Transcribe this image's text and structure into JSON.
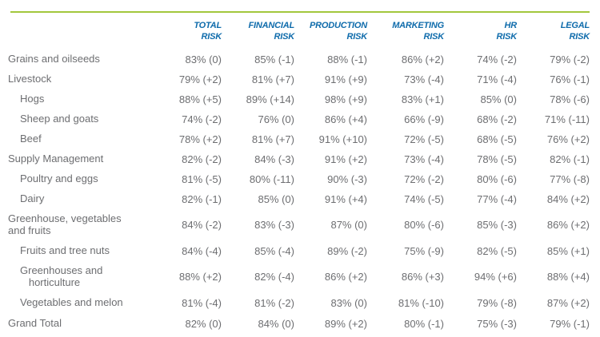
{
  "colors": {
    "accent_green": "#a2c73d",
    "header_blue": "#0e6bab",
    "text_gray": "#6d6e71"
  },
  "chart_data": {
    "type": "table",
    "title": "",
    "columns": [
      {
        "line1": "TOTAL",
        "line2": "RISK"
      },
      {
        "line1": "FINANCIAL",
        "line2": "RISK"
      },
      {
        "line1": "PRODUCTION",
        "line2": "RISK"
      },
      {
        "line1": "MARKETING",
        "line2": "RISK"
      },
      {
        "line1": "HR",
        "line2": "RISK"
      },
      {
        "line1": "LEGAL",
        "line2": "RISK"
      }
    ],
    "rows": [
      {
        "label": "Grains and oilseeds",
        "indent": 0,
        "double": false,
        "total": false,
        "values": [
          "83% (0)",
          "85% (-1)",
          "88% (-1)",
          "86% (+2)",
          "74% (-2)",
          "79% (-2)"
        ]
      },
      {
        "label": "Livestock",
        "indent": 0,
        "double": false,
        "total": false,
        "values": [
          "79% (+2)",
          "81% (+7)",
          "91% (+9)",
          "73% (-4)",
          "71% (-4)",
          "76% (-1)"
        ]
      },
      {
        "label": "Hogs",
        "indent": 1,
        "double": false,
        "total": false,
        "values": [
          "88% (+5)",
          "89% (+14)",
          "98% (+9)",
          "83% (+1)",
          "85% (0)",
          "78% (-6)"
        ]
      },
      {
        "label": "Sheep and goats",
        "indent": 1,
        "double": false,
        "total": false,
        "values": [
          "74% (-2)",
          "76% (0)",
          "86% (+4)",
          "66% (-9)",
          "68% (-2)",
          "71% (-11)"
        ]
      },
      {
        "label": "Beef",
        "indent": 1,
        "double": false,
        "total": false,
        "values": [
          "78% (+2)",
          "81% (+7)",
          "91% (+10)",
          "72% (-5)",
          "68% (-5)",
          "76% (+2)"
        ]
      },
      {
        "label": "Supply Management",
        "indent": 0,
        "double": false,
        "total": false,
        "values": [
          "82% (-2)",
          "84% (-3)",
          "91% (+2)",
          "73% (-4)",
          "78% (-5)",
          "82% (-1)"
        ]
      },
      {
        "label": "Poultry and eggs",
        "indent": 1,
        "double": false,
        "total": false,
        "values": [
          "81% (-5)",
          "80% (-11)",
          "90% (-3)",
          "72% (-2)",
          "80% (-6)",
          "77% (-8)"
        ]
      },
      {
        "label": "Dairy",
        "indent": 1,
        "double": false,
        "total": false,
        "values": [
          "82% (-1)",
          "85% (0)",
          "91% (+4)",
          "74% (-5)",
          "77% (-4)",
          "84% (+2)"
        ]
      },
      {
        "label": "Greenhouse, vegetables\nand fruits",
        "indent": 0,
        "double": true,
        "total": false,
        "values": [
          "84% (-2)",
          "83% (-3)",
          "87% (0)",
          "80% (-6)",
          "85% (-3)",
          "86% (+2)"
        ]
      },
      {
        "label": "Fruits and tree nuts",
        "indent": 1,
        "double": false,
        "total": false,
        "values": [
          "84% (-4)",
          "85% (-4)",
          "89% (-2)",
          "75% (-9)",
          "82% (-5)",
          "85% (+1)"
        ]
      },
      {
        "label": "Greenhouses and\n   horticulture",
        "indent": 1,
        "double": true,
        "total": false,
        "values": [
          "88% (+2)",
          "82% (-4)",
          "86% (+2)",
          "86% (+3)",
          "94% (+6)",
          "88% (+4)"
        ]
      },
      {
        "label": "Vegetables and melon",
        "indent": 1,
        "double": false,
        "total": false,
        "values": [
          "81% (-4)",
          "81% (-2)",
          "83% (0)",
          "81% (-10)",
          "79% (-8)",
          "87% (+2)"
        ]
      },
      {
        "label": "Grand Total",
        "indent": 0,
        "double": false,
        "total": true,
        "values": [
          "82% (0)",
          "84% (0)",
          "89% (+2)",
          "80% (-1)",
          "75% (-3)",
          "79% (-1)"
        ]
      }
    ]
  }
}
